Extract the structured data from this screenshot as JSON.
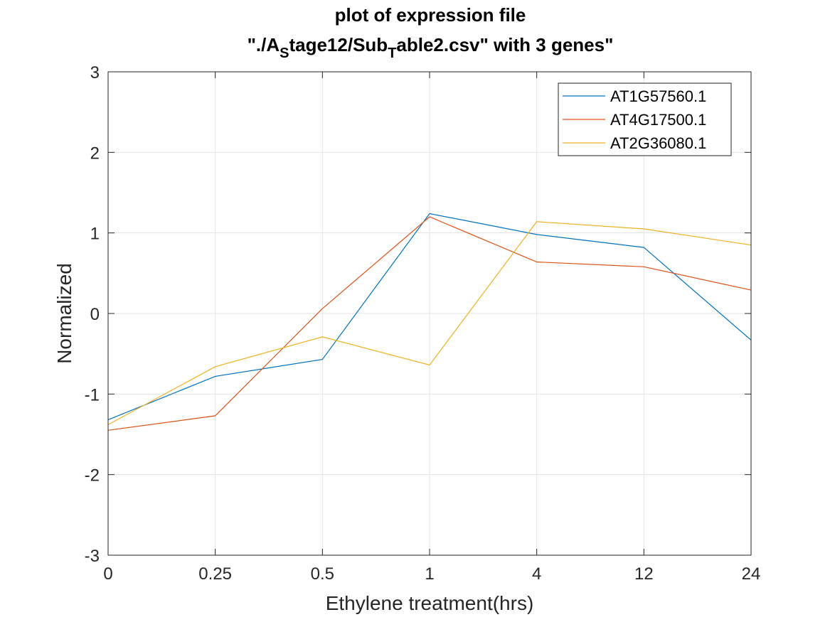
{
  "chart_data": {
    "type": "line",
    "title_lines": [
      {
        "parts": [
          {
            "text": "plot of expression file",
            "sub": false
          }
        ]
      },
      {
        "parts": [
          {
            "text": "\"./A",
            "sub": false
          },
          {
            "text": "S",
            "sub": true
          },
          {
            "text": "tage12/Sub",
            "sub": false
          },
          {
            "text": "T",
            "sub": true
          },
          {
            "text": "able2.csv\" with 3 genes\"",
            "sub": false
          }
        ]
      }
    ],
    "xlabel": "Ethylene treatment(hrs)",
    "ylabel": "Normalized",
    "categories": [
      "0",
      "0.25",
      "0.5",
      "1",
      "4",
      "12",
      "24"
    ],
    "ylim": [
      -3,
      3
    ],
    "yticks": [
      -3,
      -2,
      -1,
      0,
      1,
      2,
      3
    ],
    "grid": true,
    "legend_position": "top-right",
    "series": [
      {
        "name": "AT1G57560.1",
        "color": "#0072BD",
        "values": [
          -1.32,
          -0.78,
          -0.57,
          1.24,
          0.98,
          0.82,
          -0.33
        ]
      },
      {
        "name": "AT4G17500.1",
        "color": "#D95319",
        "values": [
          -1.45,
          -1.27,
          0.06,
          1.2,
          0.64,
          0.58,
          0.29
        ]
      },
      {
        "name": "AT2G36080.1",
        "color": "#EDB120",
        "values": [
          -1.38,
          -0.66,
          -0.29,
          -0.64,
          1.14,
          1.05,
          0.85
        ]
      }
    ]
  }
}
